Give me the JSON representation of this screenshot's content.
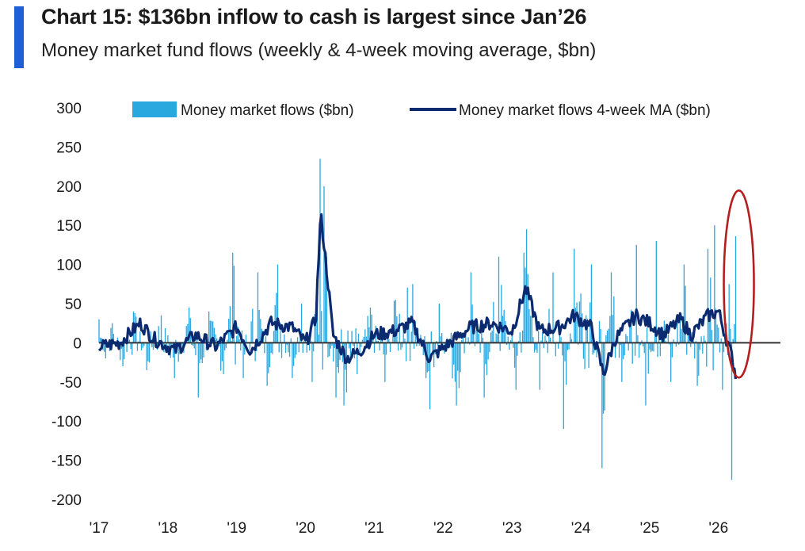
{
  "header": {
    "title": "Chart 15: $136bn inflow to cash is largest since Jan’26",
    "subtitle": "Money market fund flows (weekly & 4-week moving average, $bn)"
  },
  "colors": {
    "accent": "#1f5fd6",
    "bars": "#29a8e0",
    "ma_line": "#0b2a6f",
    "zero_line": "#333333",
    "highlight": "#b41e1e"
  },
  "chart_data": {
    "type": "bar",
    "title": "Money market fund flows (weekly & 4-week moving average, $bn)",
    "xlabel": "",
    "ylabel": "",
    "ylim": [
      -200,
      300
    ],
    "yticks": [
      300,
      250,
      200,
      150,
      100,
      50,
      0,
      -50,
      -100,
      -150,
      -200
    ],
    "xlim": [
      2017,
      2026.9
    ],
    "xticks": [
      {
        "value": 2017,
        "label": "'17"
      },
      {
        "value": 2018,
        "label": "'18"
      },
      {
        "value": 2019,
        "label": "'19"
      },
      {
        "value": 2020,
        "label": "'20"
      },
      {
        "value": 2021,
        "label": "'21"
      },
      {
        "value": 2022,
        "label": "'22"
      },
      {
        "value": 2023,
        "label": "'23"
      },
      {
        "value": 2024,
        "label": "'24"
      },
      {
        "value": 2025,
        "label": "'25"
      },
      {
        "value": 2026,
        "label": "'26"
      }
    ],
    "legend": {
      "position": "top",
      "bar_label": "Money market flows ($bn)",
      "line_label": "Money market flows 4-week MA ($bn)"
    },
    "grid": false,
    "annotation": {
      "type": "ellipse",
      "x": 2026.25,
      "y": 70,
      "color": "#b41e1e"
    },
    "series": [
      {
        "name": "Money market flows ($bn)",
        "type": "bar",
        "key_points": [
          {
            "x": 2017.0,
            "y": 30
          },
          {
            "x": 2017.1,
            "y": -20
          },
          {
            "x": 2017.2,
            "y": 25
          },
          {
            "x": 2017.35,
            "y": -30
          },
          {
            "x": 2017.5,
            "y": 40
          },
          {
            "x": 2017.7,
            "y": -35
          },
          {
            "x": 2017.9,
            "y": 35
          },
          {
            "x": 2018.1,
            "y": -45
          },
          {
            "x": 2018.3,
            "y": 45
          },
          {
            "x": 2018.45,
            "y": -70
          },
          {
            "x": 2018.6,
            "y": 40
          },
          {
            "x": 2018.8,
            "y": -40
          },
          {
            "x": 2018.95,
            "y": 115
          },
          {
            "x": 2019.1,
            "y": -45
          },
          {
            "x": 2019.3,
            "y": 90
          },
          {
            "x": 2019.45,
            "y": -55
          },
          {
            "x": 2019.6,
            "y": 100
          },
          {
            "x": 2019.8,
            "y": -45
          },
          {
            "x": 2019.95,
            "y": 50
          },
          {
            "x": 2020.1,
            "y": -50
          },
          {
            "x": 2020.22,
            "y": 235
          },
          {
            "x": 2020.26,
            "y": 200
          },
          {
            "x": 2020.3,
            "y": 110
          },
          {
            "x": 2020.45,
            "y": -70
          },
          {
            "x": 2020.55,
            "y": -80
          },
          {
            "x": 2020.75,
            "y": -40
          },
          {
            "x": 2020.95,
            "y": 45
          },
          {
            "x": 2021.15,
            "y": -50
          },
          {
            "x": 2021.3,
            "y": 55
          },
          {
            "x": 2021.55,
            "y": 75
          },
          {
            "x": 2021.8,
            "y": -85
          },
          {
            "x": 2021.95,
            "y": 50
          },
          {
            "x": 2022.2,
            "y": -80
          },
          {
            "x": 2022.4,
            "y": 90
          },
          {
            "x": 2022.6,
            "y": -70
          },
          {
            "x": 2022.8,
            "y": 110
          },
          {
            "x": 2023.05,
            "y": -60
          },
          {
            "x": 2023.18,
            "y": 115
          },
          {
            "x": 2023.22,
            "y": 145
          },
          {
            "x": 2023.4,
            "y": -60
          },
          {
            "x": 2023.6,
            "y": 90
          },
          {
            "x": 2023.75,
            "y": -110
          },
          {
            "x": 2023.9,
            "y": 120
          },
          {
            "x": 2024.15,
            "y": 100
          },
          {
            "x": 2024.3,
            "y": -160
          },
          {
            "x": 2024.45,
            "y": 90
          },
          {
            "x": 2024.6,
            "y": -50
          },
          {
            "x": 2024.8,
            "y": 125
          },
          {
            "x": 2024.95,
            "y": -80
          },
          {
            "x": 2025.1,
            "y": 130
          },
          {
            "x": 2025.3,
            "y": -50
          },
          {
            "x": 2025.5,
            "y": 100
          },
          {
            "x": 2025.7,
            "y": -55
          },
          {
            "x": 2025.85,
            "y": 120
          },
          {
            "x": 2025.95,
            "y": 150
          },
          {
            "x": 2026.05,
            "y": -60
          },
          {
            "x": 2026.15,
            "y": 75
          },
          {
            "x": 2026.2,
            "y": -175
          },
          {
            "x": 2026.25,
            "y": 136
          }
        ]
      },
      {
        "name": "Money market flows 4-week MA ($bn)",
        "type": "line",
        "key_points": [
          {
            "x": 2017.0,
            "y": -5
          },
          {
            "x": 2017.3,
            "y": 0
          },
          {
            "x": 2017.6,
            "y": 25
          },
          {
            "x": 2017.8,
            "y": 5
          },
          {
            "x": 2018.1,
            "y": -10
          },
          {
            "x": 2018.4,
            "y": 10
          },
          {
            "x": 2018.7,
            "y": -5
          },
          {
            "x": 2019.0,
            "y": 20
          },
          {
            "x": 2019.2,
            "y": -10
          },
          {
            "x": 2019.5,
            "y": 25
          },
          {
            "x": 2019.8,
            "y": 20
          },
          {
            "x": 2020.0,
            "y": 0
          },
          {
            "x": 2020.15,
            "y": 30
          },
          {
            "x": 2020.22,
            "y": 165
          },
          {
            "x": 2020.3,
            "y": 100
          },
          {
            "x": 2020.4,
            "y": 10
          },
          {
            "x": 2020.6,
            "y": -20
          },
          {
            "x": 2020.8,
            "y": -10
          },
          {
            "x": 2021.0,
            "y": 10
          },
          {
            "x": 2021.3,
            "y": 15
          },
          {
            "x": 2021.55,
            "y": 25
          },
          {
            "x": 2021.8,
            "y": -20
          },
          {
            "x": 2022.1,
            "y": 0
          },
          {
            "x": 2022.4,
            "y": 20
          },
          {
            "x": 2022.7,
            "y": 25
          },
          {
            "x": 2023.0,
            "y": 15
          },
          {
            "x": 2023.2,
            "y": 70
          },
          {
            "x": 2023.4,
            "y": 15
          },
          {
            "x": 2023.7,
            "y": 20
          },
          {
            "x": 2023.9,
            "y": 35
          },
          {
            "x": 2024.15,
            "y": 20
          },
          {
            "x": 2024.33,
            "y": -40
          },
          {
            "x": 2024.5,
            "y": 5
          },
          {
            "x": 2024.8,
            "y": 35
          },
          {
            "x": 2025.0,
            "y": 25
          },
          {
            "x": 2025.2,
            "y": 10
          },
          {
            "x": 2025.45,
            "y": 30
          },
          {
            "x": 2025.6,
            "y": 10
          },
          {
            "x": 2025.85,
            "y": 35
          },
          {
            "x": 2026.0,
            "y": 40
          },
          {
            "x": 2026.1,
            "y": 10
          },
          {
            "x": 2026.2,
            "y": -20
          },
          {
            "x": 2026.25,
            "y": -40
          }
        ]
      }
    ]
  }
}
